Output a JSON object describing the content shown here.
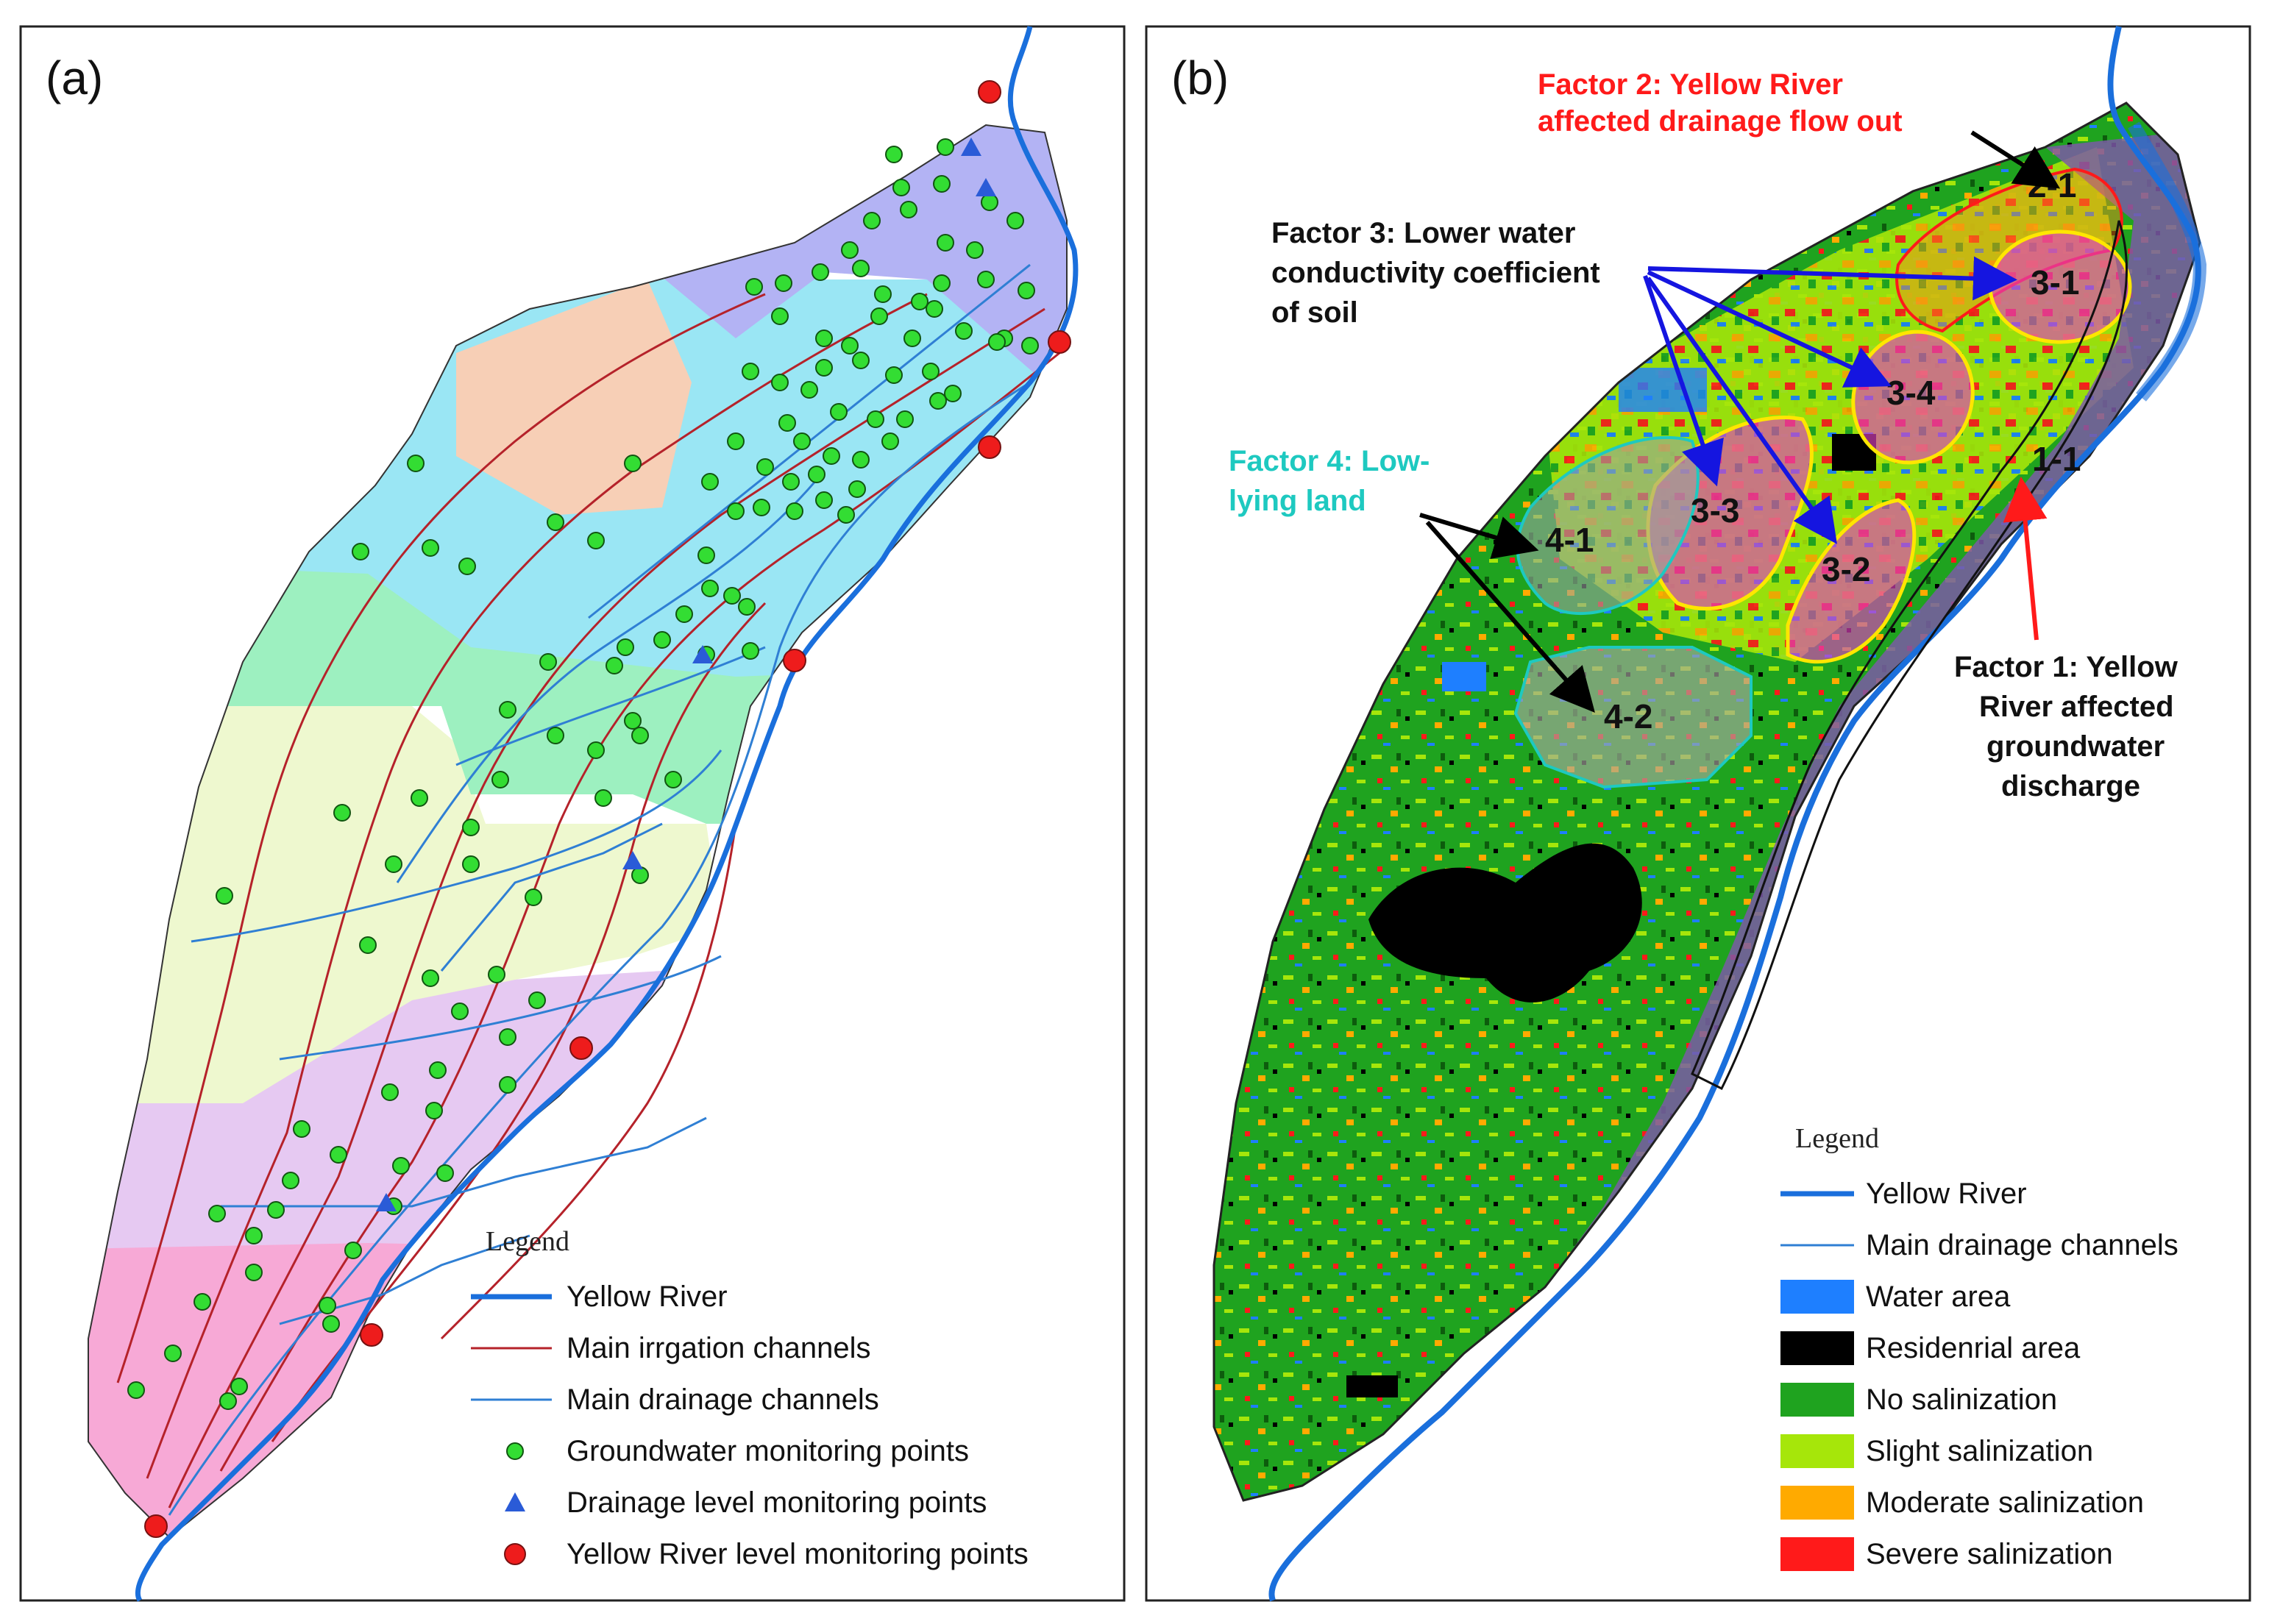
{
  "panel_a": {
    "label": "(a)",
    "legend": {
      "title": "Legend",
      "items": [
        {
          "label": "Yellow River",
          "symbol": "river-line"
        },
        {
          "label": "Main irrgation channels",
          "symbol": "irrigation-line"
        },
        {
          "label": "Main drainage channels",
          "symbol": "drainage-line"
        },
        {
          "label": "Groundwater monitoring points",
          "symbol": "green-dot"
        },
        {
          "label": "Drainage level monitoring points",
          "symbol": "blue-triangle"
        },
        {
          "label": "Yellow River level monitoring points",
          "symbol": "red-dot"
        }
      ]
    }
  },
  "panel_b": {
    "label": "(b)",
    "factors": {
      "f1": [
        "Factor 1: Yellow",
        "River affected",
        "groundwater",
        "discharge"
      ],
      "f2": [
        "Factor 2: Yellow River",
        "affected drainage flow out"
      ],
      "f3": [
        "Factor 3: Lower water",
        "conductivity coefficient",
        "of soil"
      ],
      "f4": [
        "Factor 4: Low-",
        "lying land"
      ]
    },
    "zones": [
      "1-1",
      "2-1",
      "3-1",
      "3-2",
      "3-3",
      "3-4",
      "4-1",
      "4-2"
    ],
    "legend": {
      "title": "Legend",
      "items": [
        {
          "label": "Yellow River",
          "symbol": "river-line"
        },
        {
          "label": "Main drainage channels",
          "symbol": "drainage-line"
        },
        {
          "label": "Water area",
          "color": "#1e7fff"
        },
        {
          "label": "Residenrial area",
          "color": "#000000"
        },
        {
          "label": "No salinization",
          "color": "#1fa31f"
        },
        {
          "label": "Slight salinization",
          "color": "#a6e60a"
        },
        {
          "label": "Moderate salinization",
          "color": "#ffaa00"
        },
        {
          "label": "Severe salinization",
          "color": "#ff1a1a"
        }
      ]
    }
  },
  "colors": {
    "river": "#1a6fdc",
    "irrigation": "#b5222a",
    "drainage": "#2f7fd4",
    "gw_point": "#33dd33",
    "river_point": "#ee1c1c",
    "drainage_point": "#2a5bd7",
    "factor1": "#000000",
    "factor2": "#ff1a1a",
    "factor3": "#000000",
    "factor4": "#1ec9c0"
  }
}
